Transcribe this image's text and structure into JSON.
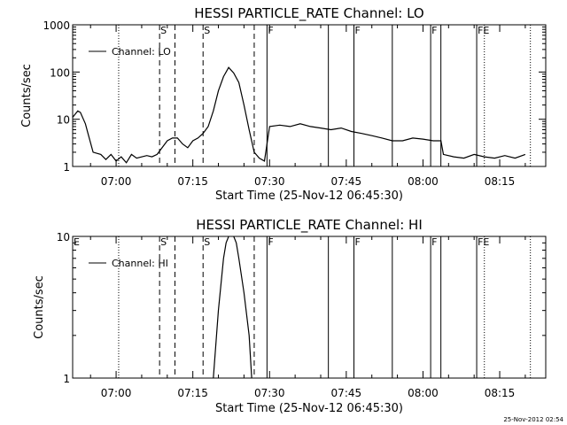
{
  "chart_data": [
    {
      "type": "line",
      "title": "HESSI PARTICLE_RATE Channel: LO",
      "xlabel": "Start Time (25-Nov-12 06:45:30)",
      "ylabel": "Counts/sec",
      "y_scale": "log",
      "xlim": [
        "06:51:30",
        "08:24:00"
      ],
      "ylim": [
        1,
        1000
      ],
      "x_tick_labels": [
        "07:00",
        "07:15",
        "07:30",
        "07:45",
        "08:00",
        "08:15"
      ],
      "y_tick_labels": [
        "1",
        "10",
        "100",
        "1000"
      ],
      "legend": {
        "placement": "top-left",
        "entries": [
          "Channel: LO"
        ]
      },
      "grid": false,
      "series": [
        {
          "name": "Channel: LO",
          "x": [
            "06:51:30",
            "06:52:30",
            "06:53:00",
            "06:54:00",
            "06:54:30",
            "06:55:30",
            "06:57:00",
            "06:58:00",
            "06:59:00",
            "07:00:00",
            "07:01:00",
            "07:02:00",
            "07:03:00",
            "07:04:00",
            "07:06:00",
            "07:07:00",
            "07:08:00",
            "07:10:00",
            "07:11:00",
            "07:12:00",
            "07:13:00",
            "07:14:00",
            "07:15:00",
            "07:16:00",
            "07:17:00",
            "07:18:00",
            "07:19:00",
            "07:20:00",
            "07:21:00",
            "07:22:00",
            "07:23:00",
            "07:24:00",
            "07:25:00",
            "07:26:00",
            "07:27:00",
            "07:28:00",
            "07:29:00",
            "07:30:00",
            "07:32:00",
            "07:34:00",
            "07:36:00",
            "07:38:00",
            "07:40:00",
            "07:42:00",
            "07:44:00",
            "07:46:00",
            "07:48:00",
            "07:50:00",
            "07:52:00",
            "07:54:00",
            "07:56:00",
            "07:58:00",
            "08:00:00",
            "08:02:00",
            "08:03:30",
            "08:04:00",
            "08:06:00",
            "08:08:00",
            "08:10:00",
            "08:12:00",
            "08:14:00",
            "08:16:00",
            "08:18:00",
            "08:20:00"
          ],
          "values": [
            11,
            15,
            14,
            8,
            5,
            2,
            1.8,
            1.4,
            1.8,
            1.3,
            1.6,
            1.2,
            1.8,
            1.5,
            1.7,
            1.6,
            1.8,
            3.5,
            4,
            4,
            3,
            2.5,
            3.5,
            4,
            5,
            7,
            15,
            40,
            80,
            125,
            95,
            60,
            20,
            6,
            2,
            1.5,
            1.3,
            7,
            7.5,
            7,
            8,
            7,
            6.5,
            6,
            6.5,
            5.5,
            5,
            4.5,
            4,
            3.5,
            3.5,
            4,
            3.8,
            3.5,
            3.5,
            1.8,
            1.6,
            1.5,
            1.8,
            1.6,
            1.5,
            1.7,
            1.5,
            1.8
          ]
        }
      ],
      "annotations": [
        {
          "time": "07:00:30",
          "label": "",
          "style": "dotted"
        },
        {
          "time": "07:08:30",
          "label": "S",
          "style": "dashed"
        },
        {
          "time": "07:11:30",
          "label": "",
          "style": "dashed"
        },
        {
          "time": "07:17:00",
          "label": "S",
          "style": "dashed"
        },
        {
          "time": "07:27:00",
          "label": "",
          "style": "dashed"
        },
        {
          "time": "07:29:30",
          "label": "F",
          "style": "solid"
        },
        {
          "time": "07:41:30",
          "label": "",
          "style": "solid"
        },
        {
          "time": "07:46:30",
          "label": "F",
          "style": "solid"
        },
        {
          "time": "07:54:00",
          "label": "",
          "style": "solid"
        },
        {
          "time": "08:01:30",
          "label": "F",
          "style": "solid"
        },
        {
          "time": "08:03:30",
          "label": "",
          "style": "solid"
        },
        {
          "time": "08:10:30",
          "label": "FE",
          "style": "solid"
        },
        {
          "time": "08:12:00",
          "label": "",
          "style": "dotted"
        },
        {
          "time": "08:21:00",
          "label": "",
          "style": "dotted"
        }
      ]
    },
    {
      "type": "line",
      "title": "HESSI PARTICLE_RATE Channel: HI",
      "xlabel": "Start Time (25-Nov-12 06:45:30)",
      "ylabel": "Counts/sec",
      "y_scale": "log",
      "xlim": [
        "06:51:30",
        "08:24:00"
      ],
      "ylim": [
        1,
        10
      ],
      "x_tick_labels": [
        "07:00",
        "07:15",
        "07:30",
        "07:45",
        "08:00",
        "08:15"
      ],
      "y_tick_labels": [
        "1",
        "10"
      ],
      "legend": {
        "placement": "top-left",
        "entries": [
          "Channel: HI"
        ]
      },
      "grid": false,
      "series": [
        {
          "name": "Channel: HI",
          "x": [
            "07:19:00",
            "07:20:00",
            "07:21:00",
            "07:21:30",
            "07:22:00",
            "07:22:30",
            "07:23:00",
            "07:23:30",
            "07:24:00",
            "07:25:00",
            "07:26:00",
            "07:26:30"
          ],
          "values": [
            1,
            3,
            7,
            9,
            10,
            10.5,
            10,
            9,
            7,
            4,
            2,
            1
          ]
        }
      ],
      "annotations": [
        {
          "time": "06:51:30",
          "label": "E",
          "style": "none"
        },
        {
          "time": "07:00:30",
          "label": "",
          "style": "dotted"
        },
        {
          "time": "07:08:30",
          "label": "S",
          "style": "dashed"
        },
        {
          "time": "07:11:30",
          "label": "",
          "style": "dashed"
        },
        {
          "time": "07:17:00",
          "label": "S",
          "style": "dashed"
        },
        {
          "time": "07:27:00",
          "label": "",
          "style": "dashed"
        },
        {
          "time": "07:29:30",
          "label": "F",
          "style": "solid"
        },
        {
          "time": "07:41:30",
          "label": "",
          "style": "solid"
        },
        {
          "time": "07:46:30",
          "label": "F",
          "style": "solid"
        },
        {
          "time": "07:54:00",
          "label": "",
          "style": "solid"
        },
        {
          "time": "08:01:30",
          "label": "F",
          "style": "solid"
        },
        {
          "time": "08:03:30",
          "label": "",
          "style": "solid"
        },
        {
          "time": "08:10:30",
          "label": "FE",
          "style": "solid"
        },
        {
          "time": "08:12:00",
          "label": "",
          "style": "dotted"
        },
        {
          "time": "08:21:00",
          "label": "",
          "style": "dotted"
        }
      ]
    }
  ],
  "footer": {
    "timestamp": "25-Nov-2012 02:54"
  }
}
